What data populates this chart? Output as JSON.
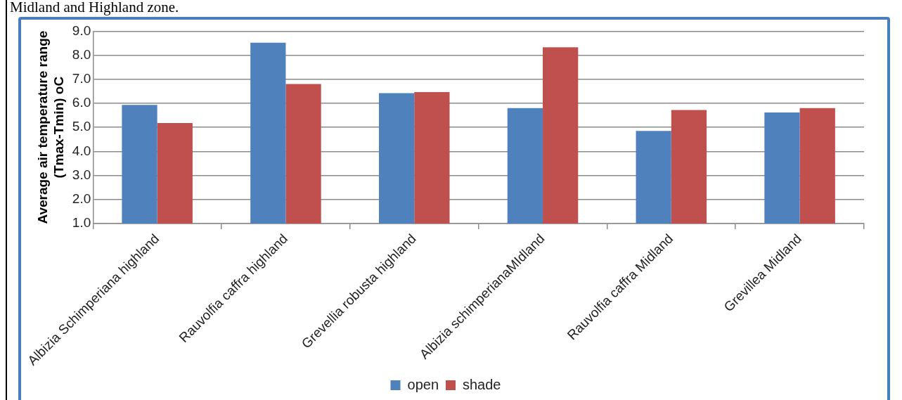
{
  "chart_data": {
    "type": "bar",
    "annotations": [
      "Midland and Highland zone."
    ],
    "ylabel": "Average air temperature range (Tmax-Tmin) oC",
    "categories": [
      "Albizia Schimperiana highland",
      "Rauvolfia caffra highland",
      "Grevellia robusta highland",
      "Albizia schimperianaMIdland",
      "Rauvolfia caffra Midland",
      "Grevillea Midland"
    ],
    "series": [
      {
        "name": "open",
        "color": "#4f81bd",
        "values": [
          5.93,
          8.52,
          6.42,
          5.8,
          4.85,
          5.62
        ]
      },
      {
        "name": "shade",
        "color": "#c0504d",
        "values": [
          5.18,
          6.8,
          6.47,
          8.33,
          5.72,
          5.8
        ]
      }
    ],
    "ylim": [
      1.0,
      9.0
    ],
    "yticks": [
      {
        "value": 1,
        "label": "1.0"
      },
      {
        "value": 2,
        "label": "2.0"
      },
      {
        "value": 3,
        "label": "3.0"
      },
      {
        "value": 4,
        "label": "4.0"
      },
      {
        "value": 5,
        "label": "5.0"
      },
      {
        "value": 6,
        "label": "6.0"
      },
      {
        "value": 7,
        "label": "7.0"
      },
      {
        "value": 8,
        "label": "8.0"
      },
      {
        "value": 9,
        "label": "9.0"
      }
    ],
    "grid": "y",
    "legend": "bottom"
  }
}
